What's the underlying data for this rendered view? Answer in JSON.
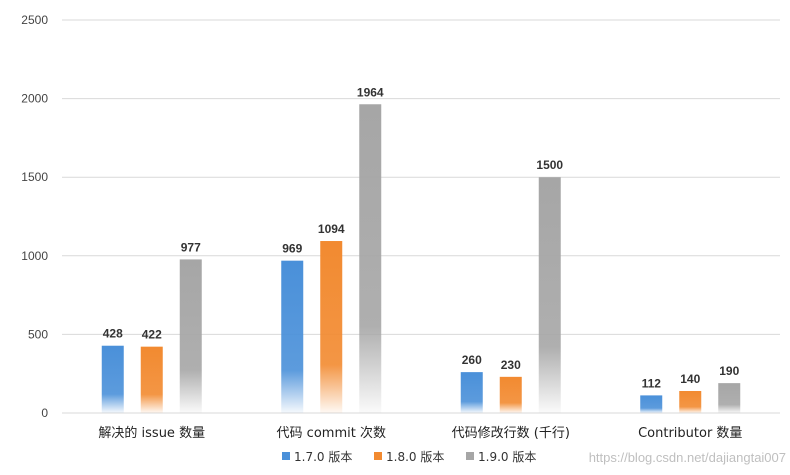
{
  "chart_data": {
    "type": "bar",
    "title": "",
    "xlabel": "",
    "ylabel": "",
    "categories": [
      "解决的 issue 数量",
      "代码 commit 次数",
      "代码修改行数 (千行)",
      "Contributor 数量"
    ],
    "series": [
      {
        "name": "1.7.0 版本",
        "color": "#4a90d9",
        "values": [
          428,
          969,
          260,
          112
        ]
      },
      {
        "name": "1.8.0 版本",
        "color": "#f28a30",
        "values": [
          422,
          1094,
          230,
          140
        ]
      },
      {
        "name": "1.9.0 版本",
        "color": "#a6a6a6",
        "values": [
          977,
          1964,
          1500,
          190
        ]
      }
    ],
    "ylim": [
      0,
      2500
    ],
    "yticks": [
      0,
      500,
      1000,
      1500,
      2000,
      2500
    ],
    "grid": true,
    "legend": "bottom"
  },
  "watermark": "https://blog.csdn.net/dajiangtai007"
}
